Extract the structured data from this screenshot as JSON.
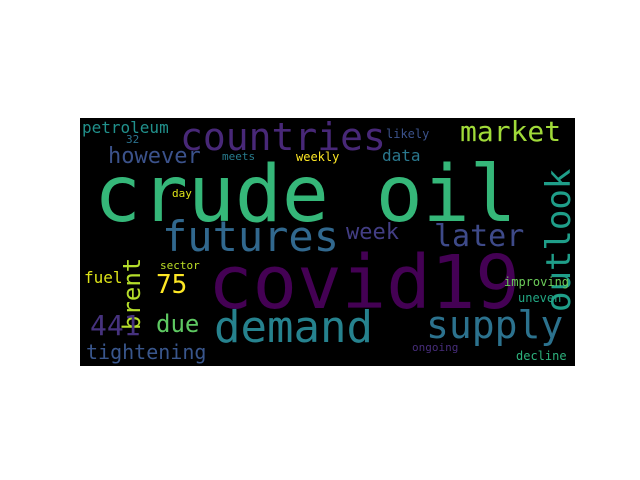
{
  "wordcloud": {
    "background": "#000000",
    "words": [
      {
        "text": "crude oil",
        "color": "#35b779"
      },
      {
        "text": "covid19",
        "color": "#440154"
      },
      {
        "text": "countries",
        "color": "#482878"
      },
      {
        "text": "futures",
        "color": "#31688e"
      },
      {
        "text": "demand",
        "color": "#26828e"
      },
      {
        "text": "supply",
        "color": "#2c728e"
      },
      {
        "text": "outlook",
        "color": "#1f9e89"
      },
      {
        "text": "market",
        "color": "#a0da39"
      },
      {
        "text": "later",
        "color": "#3e4a89"
      },
      {
        "text": "week",
        "color": "#433e85"
      },
      {
        "text": "however",
        "color": "#3b528b"
      },
      {
        "text": "brent",
        "color": "#b5de2b"
      },
      {
        "text": "75",
        "color": "#fde725"
      },
      {
        "text": "due",
        "color": "#5ec962"
      },
      {
        "text": "441",
        "color": "#46327e"
      },
      {
        "text": "tightening",
        "color": "#39568c"
      },
      {
        "text": "petroleum",
        "color": "#21918c"
      },
      {
        "text": "fuel",
        "color": "#dde318"
      },
      {
        "text": "data",
        "color": "#2a788e"
      },
      {
        "text": "improving",
        "color": "#6ccd5a"
      },
      {
        "text": "uneven",
        "color": "#22a884"
      },
      {
        "text": "decline",
        "color": "#2db27d"
      },
      {
        "text": "ongoing",
        "color": "#472d7b"
      },
      {
        "text": "weekly",
        "color": "#fde725"
      },
      {
        "text": "likely",
        "color": "#3b528b"
      },
      {
        "text": "meets",
        "color": "#287c8e"
      },
      {
        "text": "32",
        "color": "#2c728e"
      },
      {
        "text": "day",
        "color": "#dde318"
      },
      {
        "text": "sector",
        "color": "#bddf26"
      }
    ]
  }
}
